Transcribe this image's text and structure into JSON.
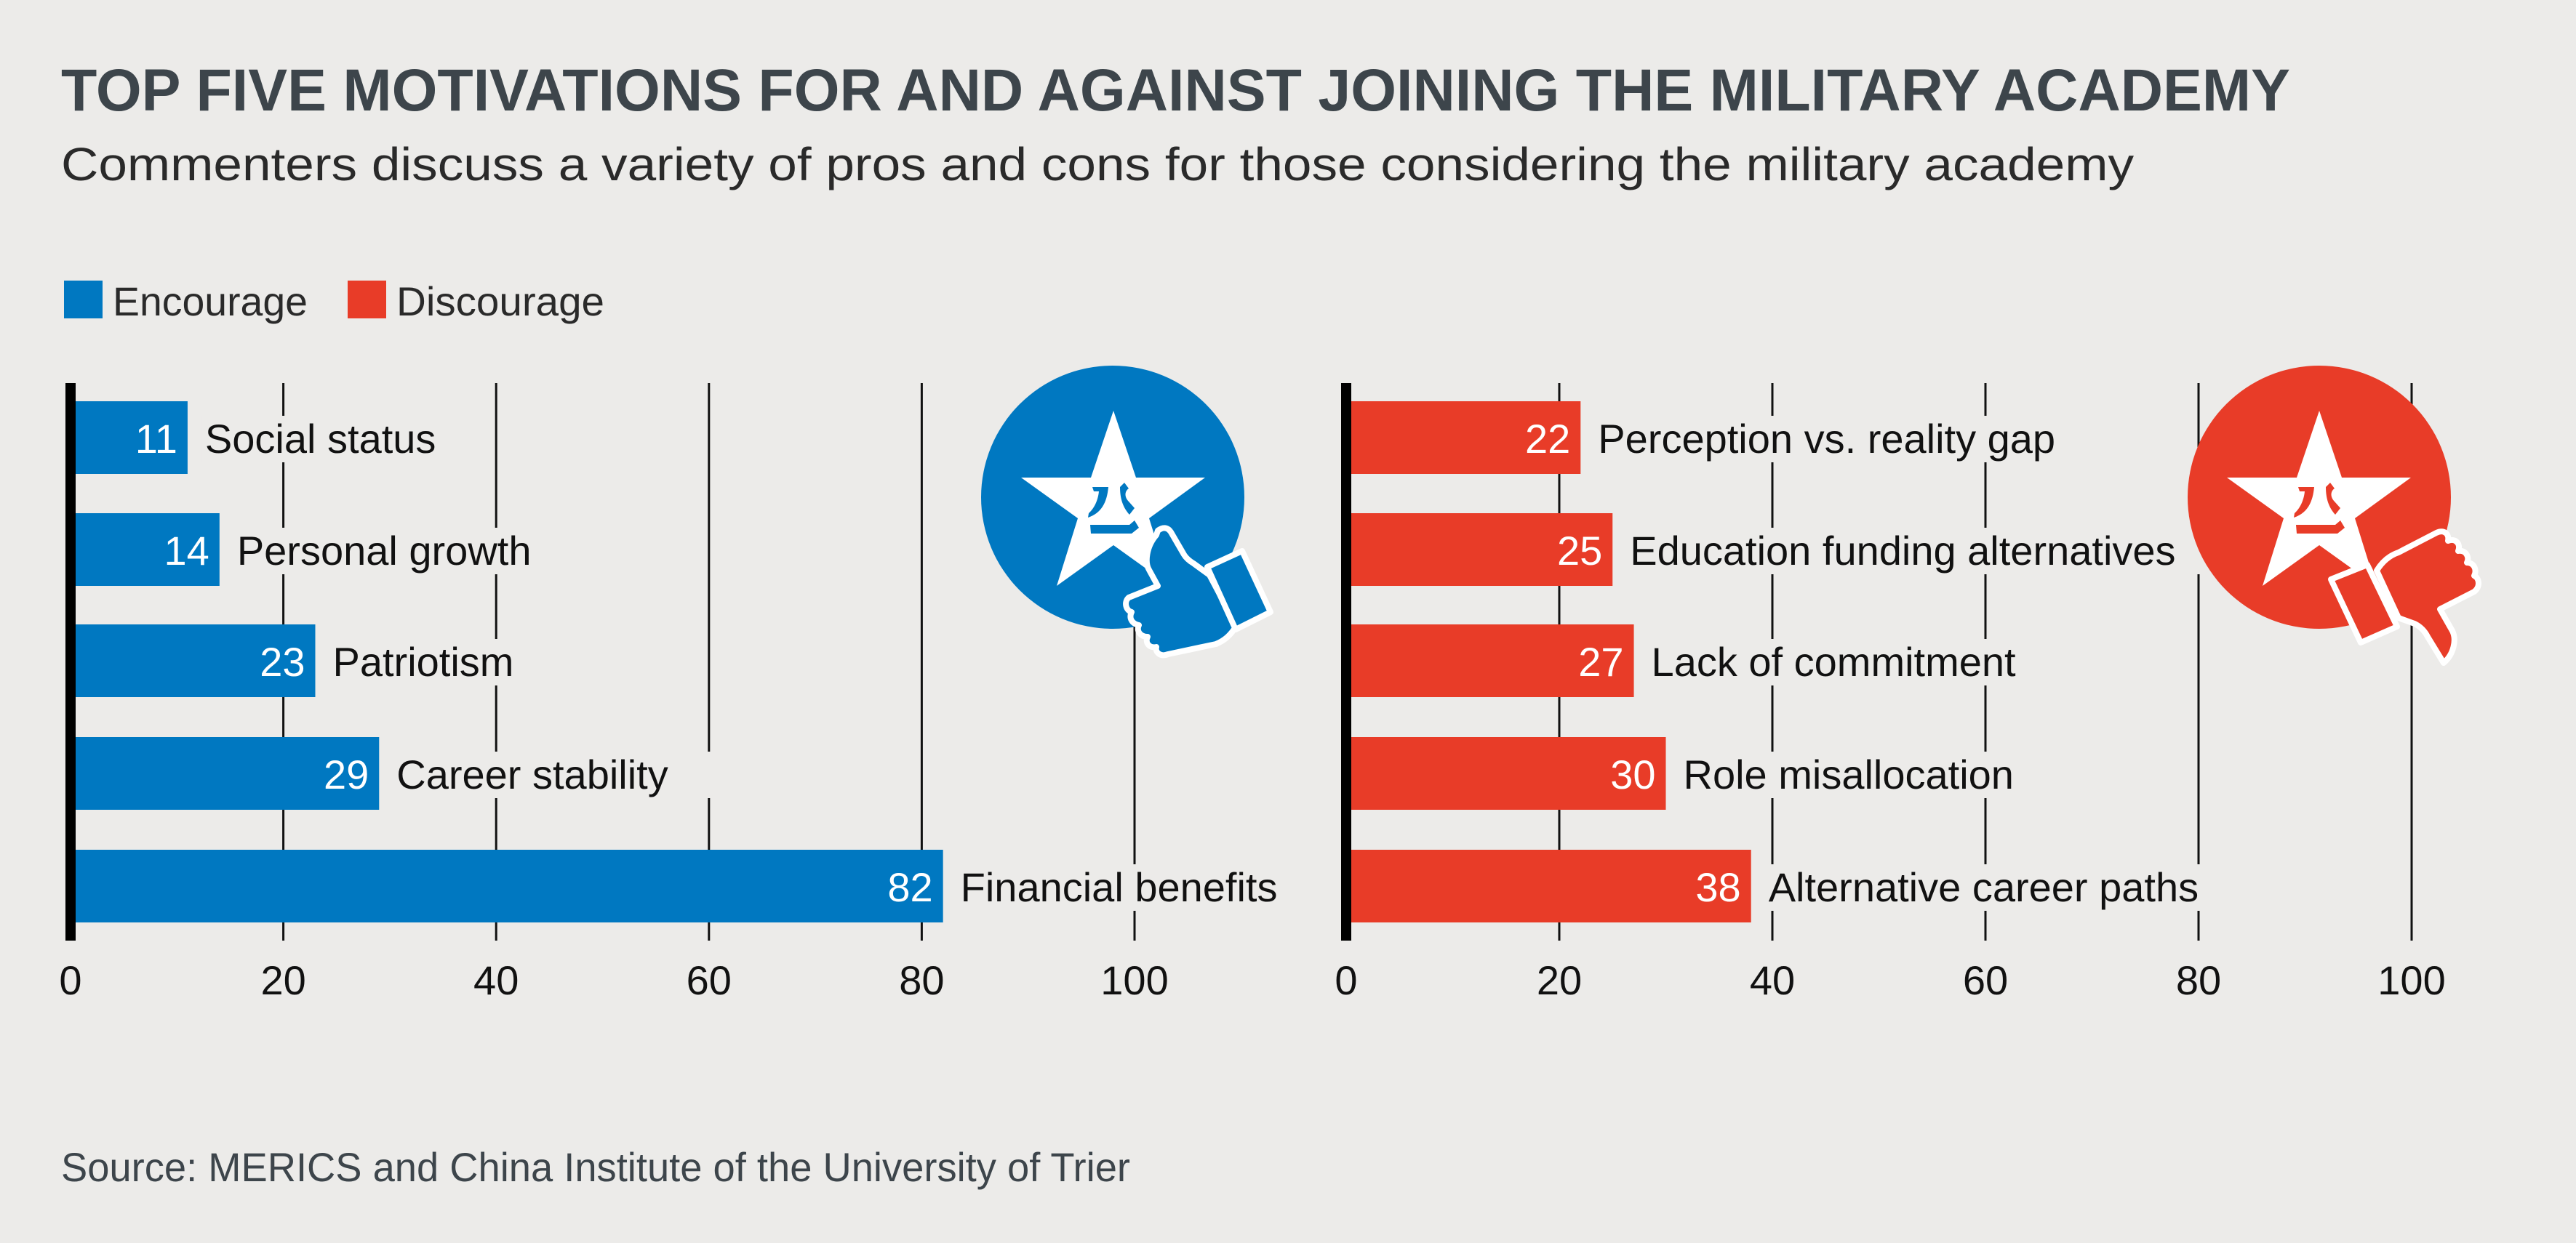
{
  "title": "TOP FIVE MOTIVATIONS FOR AND AGAINST JOINING THE MILITARY ACADEMY",
  "subtitle": "Commenters discuss a variety of pros and cons for those considering the military academy",
  "source": "Source: MERICS and China Institute of the University of Trier",
  "colors": {
    "background": "#ecebe9",
    "encourage": "#0078c1",
    "discourage": "#e83c28",
    "title": "#3d454b"
  },
  "legend": [
    {
      "label": "Encourage",
      "color": "#0078c1"
    },
    {
      "label": "Discourage",
      "color": "#e83c28"
    }
  ],
  "icons": {
    "encourage_badge": "star-emblem-thumbs-up-icon",
    "discourage_badge": "star-emblem-thumbs-down-icon"
  },
  "chart_data": [
    {
      "type": "bar",
      "orientation": "horizontal",
      "name": "Encourage",
      "color": "#0078c1",
      "categories": [
        "Social status",
        "Personal growth",
        "Patriotism",
        "Career stability",
        "Financial benefits"
      ],
      "values": [
        11,
        14,
        23,
        29,
        82
      ],
      "value_labels": [
        "11",
        "14",
        "23",
        "29",
        "82"
      ],
      "xlim": [
        0,
        100
      ],
      "xticks": [
        0,
        20,
        40,
        60,
        80,
        100
      ],
      "xtick_labels": [
        "0",
        "20",
        "40",
        "60",
        "80",
        "100"
      ],
      "grid": true,
      "xlabel": "",
      "ylabel": ""
    },
    {
      "type": "bar",
      "orientation": "horizontal",
      "name": "Discourage",
      "color": "#e83c28",
      "categories": [
        "Perception vs. reality gap",
        "Education funding alternatives",
        "Lack of commitment",
        "Role misallocation",
        "Alternative career paths"
      ],
      "values": [
        22,
        25,
        27,
        30,
        38
      ],
      "value_labels": [
        "22",
        "25",
        "27",
        "30",
        "38"
      ],
      "xlim": [
        0,
        100
      ],
      "xticks": [
        0,
        20,
        40,
        60,
        80,
        100
      ],
      "xtick_labels": [
        "0",
        "20",
        "40",
        "60",
        "80",
        "100"
      ],
      "grid": true,
      "xlabel": "",
      "ylabel": ""
    }
  ],
  "legend_placement": "top-left"
}
